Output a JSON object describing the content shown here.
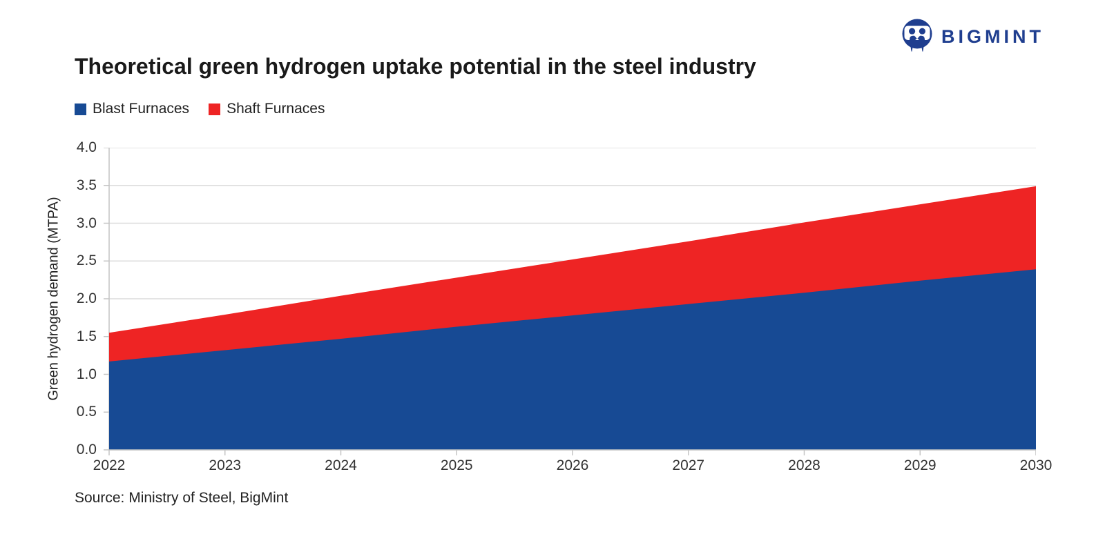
{
  "logo": {
    "text": "BIGMINT"
  },
  "source": "Source: Ministry of Steel, BigMint",
  "colors": {
    "grid": "#dcdcdc",
    "axis": "#c4c4c4",
    "title_text": "#1a1a1a",
    "tick_text": "#333333",
    "logo_navy": "#1f3e8f"
  },
  "chart_data": {
    "type": "area",
    "stacked": true,
    "title": "Theoretical green hydrogen uptake potential in the steel industry",
    "x": [
      "2022",
      "2023",
      "2024",
      "2025",
      "2026",
      "2027",
      "2028",
      "2029",
      "2030"
    ],
    "series": [
      {
        "name": "Blast Furnaces",
        "color": "#174a94",
        "values": [
          1.17,
          1.32,
          1.47,
          1.63,
          1.78,
          1.93,
          2.08,
          2.24,
          2.39
        ]
      },
      {
        "name": "Shaft Furnaces",
        "color": "#ee2424",
        "values": [
          0.38,
          0.47,
          0.57,
          0.65,
          0.74,
          0.83,
          0.93,
          1.01,
          1.1
        ]
      }
    ],
    "stacked_totals": [
      1.55,
      1.79,
      2.04,
      2.28,
      2.52,
      2.76,
      3.01,
      3.25,
      3.49
    ],
    "xlabel": "",
    "ylabel": "Green hydrogen demand (MTPA)",
    "ylim": [
      0.0,
      4.0
    ],
    "yticks": [
      "0.0",
      "0.5",
      "1.0",
      "1.5",
      "2.0",
      "2.5",
      "3.0",
      "3.5",
      "4.0"
    ],
    "grid": "horizontal",
    "legend_position": "top-left"
  }
}
